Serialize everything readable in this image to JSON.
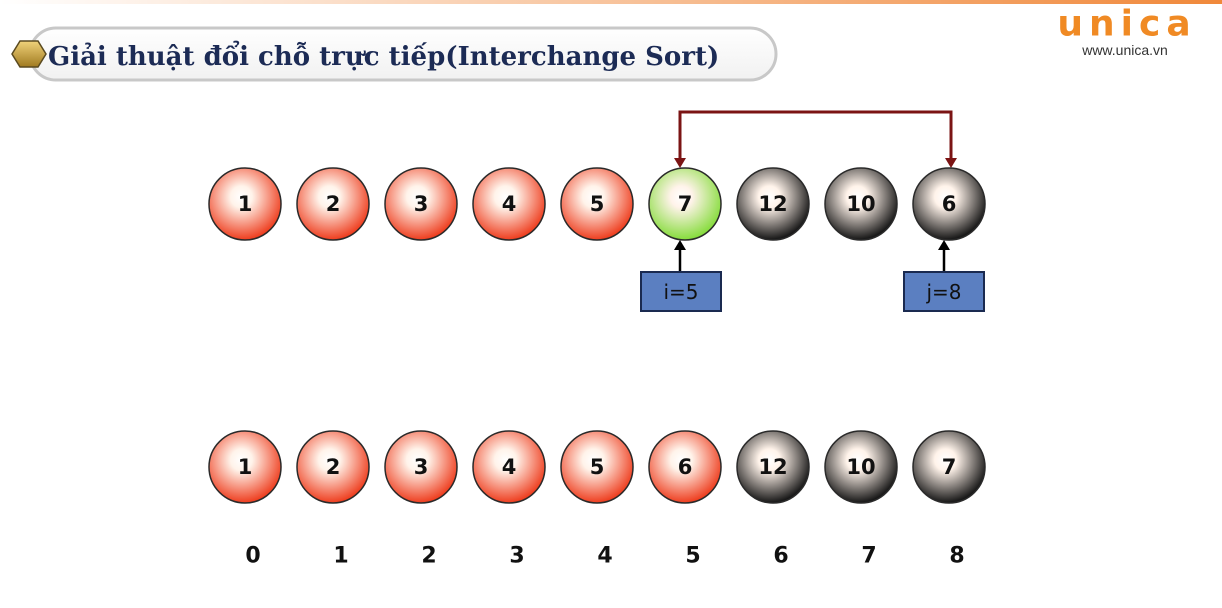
{
  "title": "Giải thuật đổi chỗ trực tiếp(Interchange Sort)",
  "logo": {
    "name": "unica",
    "url": "www.unica.vn"
  },
  "rows": [
    {
      "balls": [
        {
          "label": "1",
          "color": "#ee3d1e"
        },
        {
          "label": "2",
          "color": "#ee3d1e"
        },
        {
          "label": "3",
          "color": "#ee3d1e"
        },
        {
          "label": "4",
          "color": "#ee3d1e"
        },
        {
          "label": "5",
          "color": "#ee3d1e"
        },
        {
          "label": "7",
          "color": "#86dc3c"
        },
        {
          "label": "12",
          "color": "#151515"
        },
        {
          "label": "10",
          "color": "#151515"
        },
        {
          "label": "6",
          "color": "#151515"
        }
      ]
    },
    {
      "balls": [
        {
          "label": "1",
          "color": "#ee3d1e"
        },
        {
          "label": "2",
          "color": "#ee3d1e"
        },
        {
          "label": "3",
          "color": "#ee3d1e"
        },
        {
          "label": "4",
          "color": "#ee3d1e"
        },
        {
          "label": "5",
          "color": "#ee3d1e"
        },
        {
          "label": "6",
          "color": "#ee3d1e"
        },
        {
          "label": "12",
          "color": "#151515"
        },
        {
          "label": "10",
          "color": "#151515"
        },
        {
          "label": "7",
          "color": "#151515"
        }
      ]
    }
  ],
  "pointers": [
    "i=5",
    "j=8"
  ],
  "indices": [
    0,
    1,
    2,
    3,
    4,
    5,
    6,
    7,
    8
  ]
}
